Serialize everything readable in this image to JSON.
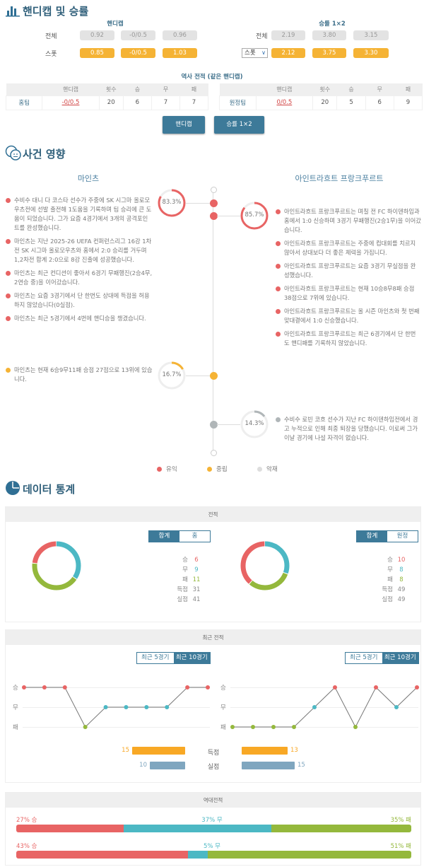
{
  "colors": {
    "win": "#e86464",
    "draw": "#4cb8c4",
    "loss": "#94b83c",
    "neutral": "#f5b335",
    "negative": "#b0b6b8",
    "primary": "#3d7a99",
    "scored": "#f8a825",
    "conceded": "#7fa6bf"
  },
  "odds": {
    "title": "핸디캡 및 승률",
    "icon": "bar-chart-icon",
    "handicap": {
      "title": "핸디캡",
      "rows": [
        {
          "label": "전체",
          "values": [
            "0.92",
            "-0/0.5",
            "0.96"
          ]
        },
        {
          "label": "스폿",
          "values": [
            "0.85",
            "-0/0.5",
            "1.03"
          ]
        }
      ]
    },
    "winrate": {
      "title": "승률 1×2",
      "rows": [
        {
          "label": "전체",
          "values": [
            "2.19",
            "3.80",
            "3.15"
          ]
        },
        {
          "label": "스폿",
          "values": [
            "2.12",
            "3.75",
            "3.30"
          ]
        }
      ],
      "select_value": "스폿"
    },
    "history_title": "역사 전적 (같은 핸디캡)",
    "history_headers": [
      "",
      "핸디캡",
      "횟수",
      "승",
      "무",
      "패"
    ],
    "history_home": [
      "홈팀",
      "-0/0.5",
      "20",
      "6",
      "7",
      "7"
    ],
    "history_away": [
      "원정팀",
      "0/0.5",
      "20",
      "5",
      "6",
      "9"
    ],
    "buttons": [
      "핸디캡",
      "승률 1×2"
    ]
  },
  "events": {
    "title": "사건 영향",
    "icon": "faces-icon",
    "home_team": "마인츠",
    "away_team": "아인트라흐트 프랑크푸르트",
    "home_positive_pct": "83.3%",
    "away_positive_pct": "85.7%",
    "home_neutral_pct": "16.7%",
    "away_negative_pct": "14.3%",
    "home_positive": [
      "수비수 대니 다 코스타 선수가 주중에 SK 시그마 올로모우츠전에 선발 출전해 1도움을 기록하며 팀 승리에 큰 도움이 되었습니다. 그가 요즘 4경기에서 3개의 공격포인트를 완성했습니다.",
      "마인츠는 지난 2025-26 UEFA 컨퍼런스리그 16강 1차전 SK 시그마 올로모우츠와 홈에서 2:0 승리를 거두며 1,2차전 합계 2:0으로 8강 진출에 성공했습니다.",
      "마인츠는 최근 컨디션이 좋아서 6경기 무패행진(2승4무, 2연승 중)을 이어갔습니다.",
      "마인츠는 요즘 3경기에서 단 한번도 상대에 득점을 허용하지 않았습니다(0실점).",
      "마인츠는 최근 5경기에서 4번에 핸디승을 챙겼습니다."
    ],
    "away_positive": [
      "아인트라흐트 프랑크푸르트는 며칠 전 FC 하이덴하임과 홈에서 1:0 신승하며 3경기 무패행진(2승1무)을 이어갔습니다.",
      "아인트라흐트 프랑크푸르트는 주중에 컵대회를 치르지 않아서 상대보다 더 좋은 체력을 가집니다.",
      "아인트라흐트 프랑크푸르트는 요즘 3경기 무실점을 완성했습니다.",
      "아인트라흐트 프랑크푸르트는 현재 10승8무8패 승점 38점으로 7위에 있습니다.",
      "아인트라흐트 프랑크푸르트는 올 시즌 마인츠와 첫 번째 맞대결에서 1:0 신승했습니다.",
      "아인트라흐트 프랑크푸르트는 최근 6경기에서 단 한번도 핸디패를 기록하지 않았습니다."
    ],
    "home_neutral": [
      "마인츠는 현재 6승9무11패 승점 27점으로 13위에 있습니다."
    ],
    "away_negative": [
      "수비수 로빈 코흐 선수가 지난 FC 하이덴하임전에서 경고 누적으로 인해 최종 퇴장을 당했습니다. 이로써 그가 이날 경기에 나설 자격이 없습니다."
    ],
    "legend": [
      "유익",
      "중립",
      "악재"
    ]
  },
  "stats": {
    "title": "데이터 통계",
    "icon": "pie-chart-icon",
    "record": {
      "title": "전적",
      "home": {
        "tabs": [
          "합계",
          "홈"
        ],
        "active": 0,
        "labels": [
          "승",
          "무",
          "패",
          "득점",
          "실점"
        ],
        "values": [
          "6",
          "9",
          "11",
          "31",
          "41"
        ]
      },
      "away": {
        "tabs": [
          "합계",
          "원정"
        ],
        "active": 0,
        "labels": [
          "승",
          "무",
          "패",
          "득점",
          "실점"
        ],
        "values": [
          "10",
          "8",
          "8",
          "49",
          "49"
        ]
      }
    },
    "recent": {
      "title": "최근 전적",
      "tabs": [
        "최근 5경기",
        "최근 10경기"
      ],
      "active": 1,
      "axis": [
        "승",
        "무",
        "패"
      ],
      "home_results": [
        "W",
        "W",
        "W",
        "L",
        "D",
        "D",
        "D",
        "D",
        "W",
        "W"
      ],
      "away_results": [
        "L",
        "L",
        "L",
        "L",
        "D",
        "W",
        "L",
        "W",
        "D",
        "W"
      ],
      "scored_label": "득점",
      "conceded_label": "실점",
      "home_scored": 15,
      "home_conceded": 10,
      "away_scored": 13,
      "away_conceded": 15
    },
    "h2h": {
      "title": "역대전적",
      "rows": [
        {
          "win": 27,
          "draw": 37,
          "loss": 35,
          "win_label": "27% 승",
          "draw_label": "37% 무",
          "loss_label": "35% 패"
        },
        {
          "win": 43,
          "draw": 5,
          "loss": 51,
          "win_label": "43% 승",
          "draw_label": "5% 무",
          "loss_label": "51% 패"
        }
      ]
    }
  }
}
